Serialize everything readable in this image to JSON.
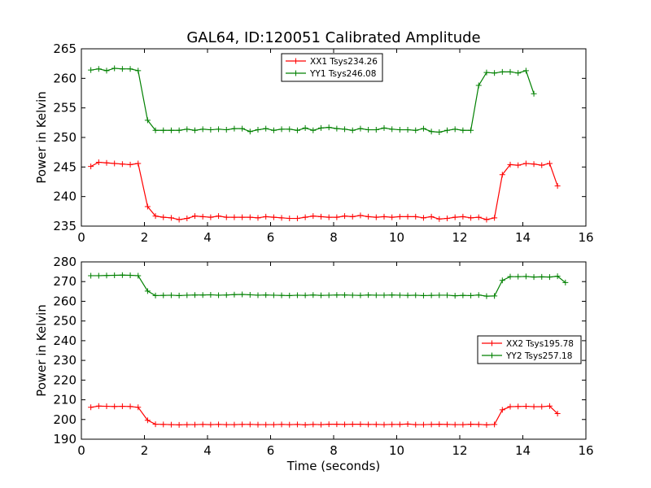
{
  "figure": {
    "title": "GAL64, ID:120051 Calibrated Amplitude"
  },
  "chart_data": [
    {
      "type": "line",
      "title": "GAL64, ID:120051 Calibrated Amplitude",
      "xlabel": "",
      "ylabel": "Power in Kelvin",
      "xlim": [
        0,
        16
      ],
      "ylim": [
        235,
        265
      ],
      "xticks": [
        "0",
        "2",
        "4",
        "6",
        "8",
        "10",
        "12",
        "14",
        "16"
      ],
      "yticks": [
        "235",
        "240",
        "245",
        "250",
        "255",
        "260",
        "265"
      ],
      "grid": false,
      "legend_position": "top-center",
      "x": [
        0.3,
        0.55,
        0.8,
        1.05,
        1.3,
        1.55,
        1.8,
        2.1,
        2.35,
        2.6,
        2.85,
        3.1,
        3.35,
        3.6,
        3.85,
        4.1,
        4.35,
        4.6,
        4.85,
        5.1,
        5.35,
        5.6,
        5.85,
        6.1,
        6.35,
        6.6,
        6.85,
        7.1,
        7.35,
        7.6,
        7.85,
        8.1,
        8.35,
        8.6,
        8.85,
        9.1,
        9.35,
        9.6,
        9.85,
        10.1,
        10.35,
        10.6,
        10.85,
        11.1,
        11.35,
        11.6,
        11.85,
        12.1,
        12.35,
        12.6,
        12.85,
        13.1,
        13.35,
        13.6,
        13.85,
        14.1,
        14.35,
        14.6,
        14.85,
        15.1,
        15.35
      ],
      "series": [
        {
          "name": "XX1 Tsys234.26",
          "color": "#ff0000",
          "values": [
            245.1,
            245.8,
            245.7,
            245.6,
            245.5,
            245.4,
            245.6,
            238.3,
            236.7,
            236.5,
            236.4,
            236.1,
            236.3,
            236.7,
            236.6,
            236.5,
            236.7,
            236.5,
            236.5,
            236.5,
            236.5,
            236.4,
            236.6,
            236.5,
            236.4,
            236.3,
            236.3,
            236.5,
            236.7,
            236.6,
            236.5,
            236.5,
            236.7,
            236.6,
            236.8,
            236.6,
            236.5,
            236.6,
            236.5,
            236.6,
            236.6,
            236.6,
            236.4,
            236.6,
            236.2,
            236.3,
            236.5,
            236.6,
            236.4,
            236.5,
            236.1,
            236.4,
            243.7,
            245.4,
            245.3,
            245.6,
            245.5,
            245.3,
            245.6,
            241.8,
            null
          ]
        },
        {
          "name": "YY1 Tsys246.08",
          "color": "#008000",
          "values": [
            261.4,
            261.6,
            261.3,
            261.7,
            261.6,
            261.6,
            261.3,
            252.9,
            251.2,
            251.2,
            251.2,
            251.2,
            251.4,
            251.2,
            251.4,
            251.3,
            251.4,
            251.3,
            251.5,
            251.5,
            251.0,
            251.3,
            251.5,
            251.2,
            251.4,
            251.4,
            251.2,
            251.6,
            251.2,
            251.6,
            251.7,
            251.5,
            251.4,
            251.2,
            251.5,
            251.3,
            251.3,
            251.6,
            251.4,
            251.3,
            251.3,
            251.2,
            251.5,
            251.0,
            250.9,
            251.2,
            251.4,
            251.2,
            251.2,
            258.8,
            261.0,
            260.9,
            261.1,
            261.1,
            260.9,
            261.3,
            257.4,
            null,
            null,
            null,
            null
          ]
        }
      ]
    },
    {
      "type": "line",
      "title": "",
      "xlabel": "Time (seconds)",
      "ylabel": "Power in Kelvin",
      "xlim": [
        0,
        16
      ],
      "ylim": [
        190,
        280
      ],
      "xticks": [
        "0",
        "2",
        "4",
        "6",
        "8",
        "10",
        "12",
        "14",
        "16"
      ],
      "yticks": [
        "190",
        "200",
        "210",
        "220",
        "230",
        "240",
        "250",
        "260",
        "270",
        "280"
      ],
      "grid": false,
      "legend_position": "center-right",
      "x": [
        0.3,
        0.55,
        0.8,
        1.05,
        1.3,
        1.55,
        1.8,
        2.1,
        2.35,
        2.6,
        2.85,
        3.1,
        3.35,
        3.6,
        3.85,
        4.1,
        4.35,
        4.6,
        4.85,
        5.1,
        5.35,
        5.6,
        5.85,
        6.1,
        6.35,
        6.6,
        6.85,
        7.1,
        7.35,
        7.6,
        7.85,
        8.1,
        8.35,
        8.6,
        8.85,
        9.1,
        9.35,
        9.6,
        9.85,
        10.1,
        10.35,
        10.6,
        10.85,
        11.1,
        11.35,
        11.6,
        11.85,
        12.1,
        12.35,
        12.6,
        12.85,
        13.1,
        13.35,
        13.6,
        13.85,
        14.1,
        14.35,
        14.6,
        14.85,
        15.1,
        15.35
      ],
      "series": [
        {
          "name": "XX2 Tsys195.78",
          "color": "#ff0000",
          "values": [
            206.2,
            206.8,
            206.7,
            206.6,
            206.7,
            206.6,
            206.2,
            199.6,
            197.6,
            197.5,
            197.4,
            197.3,
            197.4,
            197.4,
            197.5,
            197.4,
            197.5,
            197.4,
            197.4,
            197.5,
            197.5,
            197.4,
            197.4,
            197.4,
            197.5,
            197.4,
            197.5,
            197.3,
            197.5,
            197.4,
            197.6,
            197.6,
            197.5,
            197.6,
            197.6,
            197.5,
            197.5,
            197.4,
            197.5,
            197.5,
            197.7,
            197.4,
            197.4,
            197.5,
            197.6,
            197.5,
            197.4,
            197.4,
            197.6,
            197.5,
            197.3,
            197.5,
            204.9,
            206.5,
            206.6,
            206.7,
            206.5,
            206.5,
            206.8,
            203.0,
            null
          ]
        },
        {
          "name": "YY2 Tsys257.18",
          "color": "#008000",
          "values": [
            273.0,
            273.0,
            273.1,
            273.2,
            273.3,
            273.2,
            273.0,
            265.2,
            262.9,
            263.0,
            263.1,
            262.9,
            263.1,
            263.2,
            263.2,
            263.3,
            263.1,
            263.2,
            263.4,
            263.5,
            263.3,
            263.1,
            263.2,
            263.1,
            263.0,
            262.9,
            263.1,
            263.0,
            263.2,
            263.0,
            263.1,
            263.2,
            263.2,
            263.1,
            263.0,
            263.2,
            263.1,
            263.1,
            263.2,
            263.1,
            263.0,
            263.1,
            262.9,
            263.0,
            263.1,
            263.1,
            262.8,
            263.0,
            262.9,
            263.2,
            262.6,
            262.7,
            270.6,
            272.5,
            272.5,
            272.6,
            272.3,
            272.4,
            272.3,
            272.7,
            269.5
          ]
        }
      ]
    }
  ]
}
